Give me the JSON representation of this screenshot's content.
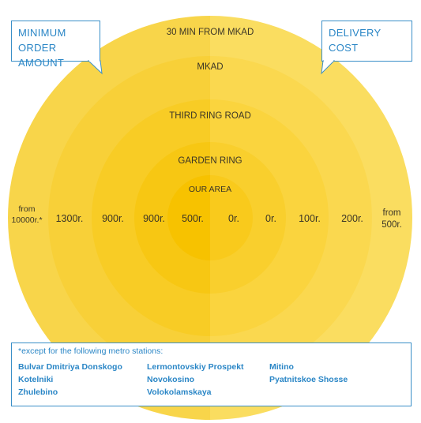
{
  "rings": [
    {
      "label": "30 MIN FROM MKAD",
      "min": "from 10000r.*",
      "cost": "from 500r."
    },
    {
      "label": "MKAD",
      "min": "1300r.",
      "cost": "200r."
    },
    {
      "label": "THIRD RING ROAD",
      "min": "900r.",
      "cost": "100r."
    },
    {
      "label": "GARDEN RING",
      "min": "900r.",
      "cost": "0r."
    },
    {
      "label": "OUR AREA",
      "min": "500r.",
      "cost": "0r."
    }
  ],
  "callouts": {
    "min_line1": "MINIMUM",
    "min_line2": "ORDER AMOUNT",
    "cost_line1": "DELIVERY",
    "cost_line2": "COST"
  },
  "notes": {
    "title": "*except for the following metro stations:",
    "stations": [
      "Bulvar Dmitriya Donskogo",
      "Kotelniki",
      "Zhulebino",
      "Lermontovskiy Prospekt",
      "Novokosino",
      "Volokolamskaya",
      "Mitino",
      "Pyatnitskoe Shosse"
    ]
  },
  "colors": {
    "left_outer": "#f8d54a",
    "right_outer": "#fadd60",
    "left_inner": "#f7c200",
    "right_inner": "#f9ca1c",
    "accent": "#2a86c6"
  }
}
